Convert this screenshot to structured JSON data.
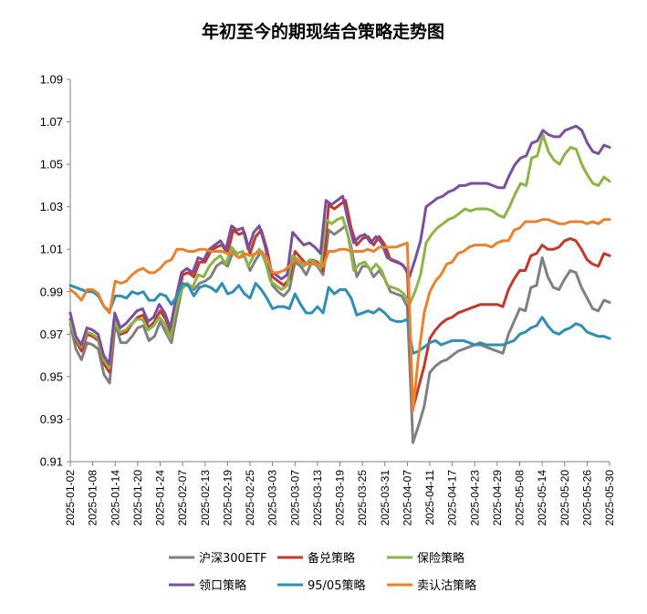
{
  "chart_data": {
    "type": "line",
    "title": "年初至今的期现结合策略走势图",
    "xlabel": "",
    "ylabel": "",
    "ylim": [
      0.91,
      1.09
    ],
    "yticks": [
      "0.91",
      "0.93",
      "0.95",
      "0.97",
      "0.99",
      "1.01",
      "1.03",
      "1.05",
      "1.07",
      "1.09"
    ],
    "grid": false,
    "legend_position": "bottom",
    "x_tick_labels": [
      "2025-01-02",
      "2025-01-08",
      "2025-01-14",
      "2025-01-20",
      "2025-01-24",
      "2025-02-07",
      "2025-02-13",
      "2025-02-19",
      "2025-02-25",
      "2025-03-03",
      "2025-03-07",
      "2025-03-13",
      "2025-03-19",
      "2025-03-25",
      "2025-03-31",
      "2025-04-07",
      "2025-04-11",
      "2025-04-17",
      "2025-04-23",
      "2025-04-29",
      "2025-05-08",
      "2025-05-14",
      "2025-05-20",
      "2025-05-26",
      "2025-05-30"
    ],
    "series": [
      {
        "name": "沪深300ETF",
        "color": "#808080",
        "values": [
          0.975,
          0.963,
          0.958,
          0.966,
          0.965,
          0.963,
          0.951,
          0.947,
          0.975,
          0.966,
          0.966,
          0.969,
          0.973,
          0.974,
          0.967,
          0.969,
          0.976,
          0.971,
          0.966,
          0.98,
          0.993,
          0.993,
          0.991,
          0.994,
          0.995,
          0.997,
          1.002,
          1.004,
          1.002,
          1.009,
          1.006,
          1.007,
          1.0,
          1.005,
          1.009,
          1.002,
          0.993,
          0.99,
          0.988,
          0.991,
          1.004,
          1.002,
          0.998,
          1.004,
          1.002,
          0.998,
          1.019,
          1.017,
          1.019,
          1.021,
          1.011,
          0.997,
          1.002,
          1.002,
          0.997,
          1.0,
          0.996,
          0.99,
          0.989,
          0.988,
          0.983,
          0.919,
          0.927,
          0.936,
          0.952,
          0.955,
          0.957,
          0.958,
          0.96,
          0.962,
          0.963,
          0.964,
          0.965,
          0.965,
          0.964,
          0.963,
          0.962,
          0.961,
          0.97,
          0.976,
          0.982,
          0.981,
          0.992,
          0.993,
          1.006,
          0.997,
          0.992,
          0.991,
          0.996,
          1.0,
          0.999,
          0.992,
          0.987,
          0.982,
          0.981,
          0.986,
          0.985
        ]
      },
      {
        "name": "备兑策略",
        "color": "#C0392B",
        "values": [
          0.977,
          0.967,
          0.962,
          0.97,
          0.969,
          0.967,
          0.956,
          0.952,
          0.977,
          0.97,
          0.971,
          0.975,
          0.978,
          0.979,
          0.973,
          0.976,
          0.981,
          0.977,
          0.97,
          0.984,
          0.998,
          0.999,
          0.997,
          1.004,
          1.004,
          1.009,
          1.011,
          1.012,
          1.008,
          1.019,
          1.017,
          1.018,
          1.008,
          1.016,
          1.019,
          1.01,
          0.997,
          0.995,
          0.993,
          0.996,
          1.009,
          1.006,
          1.003,
          1.005,
          1.004,
          1.0,
          1.031,
          1.029,
          1.031,
          1.033,
          1.02,
          1.012,
          1.015,
          1.016,
          1.012,
          1.016,
          1.012,
          1.005,
          1.004,
          1.003,
          1.0,
          0.935,
          0.945,
          0.955,
          0.968,
          0.972,
          0.975,
          0.977,
          0.978,
          0.98,
          0.981,
          0.982,
          0.983,
          0.984,
          0.984,
          0.984,
          0.984,
          0.983,
          0.991,
          0.996,
          1.0,
          1.0,
          1.007,
          1.008,
          1.012,
          1.01,
          1.01,
          1.011,
          1.014,
          1.015,
          1.014,
          1.01,
          1.005,
          1.003,
          1.002,
          1.008,
          1.007
        ]
      },
      {
        "name": "保险策略",
        "color": "#8DB447",
        "values": [
          0.976,
          0.968,
          0.964,
          0.971,
          0.97,
          0.968,
          0.958,
          0.954,
          0.976,
          0.971,
          0.972,
          0.975,
          0.977,
          0.977,
          0.972,
          0.974,
          0.978,
          0.975,
          0.968,
          0.982,
          0.991,
          0.994,
          0.992,
          0.998,
          0.997,
          1.002,
          1.005,
          1.007,
          1.003,
          1.011,
          1.008,
          1.009,
          1.002,
          1.007,
          1.01,
          1.005,
          0.995,
          0.993,
          0.991,
          0.993,
          1.007,
          1.005,
          1.002,
          1.005,
          1.004,
          1.001,
          1.024,
          1.022,
          1.024,
          1.025,
          1.016,
          1.0,
          1.003,
          1.004,
          1.0,
          1.003,
          1.0,
          0.993,
          0.992,
          0.991,
          0.989,
          0.984,
          0.99,
          0.998,
          1.013,
          1.017,
          1.02,
          1.022,
          1.024,
          1.025,
          1.027,
          1.029,
          1.028,
          1.029,
          1.029,
          1.029,
          1.028,
          1.026,
          1.025,
          1.03,
          1.036,
          1.041,
          1.04,
          1.053,
          1.054,
          1.064,
          1.056,
          1.052,
          1.05,
          1.055,
          1.058,
          1.057,
          1.05,
          1.045,
          1.041,
          1.04,
          1.044,
          1.042
        ]
      },
      {
        "name": "领口策略",
        "color": "#7A4FA0",
        "values": [
          0.98,
          0.969,
          0.965,
          0.973,
          0.972,
          0.97,
          0.96,
          0.956,
          0.98,
          0.973,
          0.975,
          0.978,
          0.981,
          0.982,
          0.976,
          0.978,
          0.984,
          0.98,
          0.973,
          0.987,
          0.999,
          1.001,
          0.999,
          1.006,
          1.005,
          1.01,
          1.012,
          1.014,
          1.01,
          1.021,
          1.019,
          1.02,
          1.01,
          1.018,
          1.021,
          1.012,
          1.0,
          0.998,
          0.996,
          0.998,
          1.018,
          1.015,
          1.012,
          1.013,
          1.011,
          1.008,
          1.033,
          1.031,
          1.033,
          1.035,
          1.023,
          1.013,
          1.016,
          1.017,
          1.013,
          1.016,
          1.013,
          1.006,
          1.005,
          1.004,
          1.002,
          0.997,
          1.005,
          1.014,
          1.03,
          1.032,
          1.034,
          1.035,
          1.037,
          1.038,
          1.04,
          1.04,
          1.041,
          1.041,
          1.041,
          1.041,
          1.04,
          1.039,
          1.039,
          1.045,
          1.05,
          1.053,
          1.054,
          1.06,
          1.061,
          1.066,
          1.064,
          1.063,
          1.063,
          1.066,
          1.067,
          1.068,
          1.066,
          1.06,
          1.056,
          1.055,
          1.059,
          1.058
        ]
      },
      {
        "name": "95/05策略",
        "color": "#2E8FB5",
        "values": [
          0.993,
          0.992,
          0.991,
          0.99,
          0.99,
          0.988,
          0.983,
          0.981,
          0.988,
          0.988,
          0.987,
          0.99,
          0.989,
          0.99,
          0.986,
          0.986,
          0.989,
          0.988,
          0.984,
          0.988,
          0.994,
          0.993,
          0.988,
          0.992,
          0.993,
          0.992,
          0.99,
          0.994,
          0.989,
          0.99,
          0.993,
          0.989,
          0.987,
          0.994,
          0.991,
          0.987,
          0.982,
          0.983,
          0.983,
          0.982,
          0.989,
          0.984,
          0.98,
          0.98,
          0.983,
          0.98,
          0.992,
          0.989,
          0.991,
          0.991,
          0.987,
          0.979,
          0.98,
          0.981,
          0.98,
          0.982,
          0.98,
          0.977,
          0.976,
          0.976,
          0.977,
          0.961,
          0.962,
          0.964,
          0.966,
          0.967,
          0.965,
          0.966,
          0.967,
          0.967,
          0.967,
          0.966,
          0.965,
          0.966,
          0.965,
          0.965,
          0.965,
          0.965,
          0.966,
          0.967,
          0.97,
          0.971,
          0.973,
          0.974,
          0.978,
          0.974,
          0.971,
          0.97,
          0.972,
          0.973,
          0.975,
          0.974,
          0.971,
          0.97,
          0.969,
          0.969,
          0.968
        ]
      },
      {
        "name": "卖认沽策略",
        "color": "#E8822F",
        "values": [
          0.991,
          0.989,
          0.986,
          0.991,
          0.991,
          0.989,
          0.983,
          0.98,
          0.995,
          0.994,
          0.995,
          0.998,
          1.0,
          1.001,
          0.999,
          0.999,
          1.001,
          1.004,
          1.005,
          1.01,
          1.01,
          1.009,
          1.009,
          1.01,
          1.01,
          1.009,
          1.009,
          1.009,
          1.008,
          1.008,
          1.006,
          1.008,
          1.007,
          1.008,
          1.009,
          1.006,
          0.999,
          0.999,
          1.0,
          1.002,
          1.005,
          1.004,
          1.003,
          1.003,
          1.003,
          1.002,
          1.009,
          1.009,
          1.01,
          1.01,
          1.009,
          1.009,
          1.009,
          1.01,
          1.009,
          1.011,
          1.011,
          1.011,
          1.011,
          1.012,
          1.013,
          0.934,
          0.96,
          0.98,
          0.99,
          0.995,
          0.998,
          1.003,
          1.004,
          1.008,
          1.009,
          1.011,
          1.012,
          1.012,
          1.012,
          1.011,
          1.013,
          1.014,
          1.014,
          1.019,
          1.02,
          1.023,
          1.023,
          1.023,
          1.024,
          1.024,
          1.023,
          1.022,
          1.022,
          1.023,
          1.023,
          1.023,
          1.022,
          1.023,
          1.022,
          1.024,
          1.024
        ]
      }
    ]
  }
}
